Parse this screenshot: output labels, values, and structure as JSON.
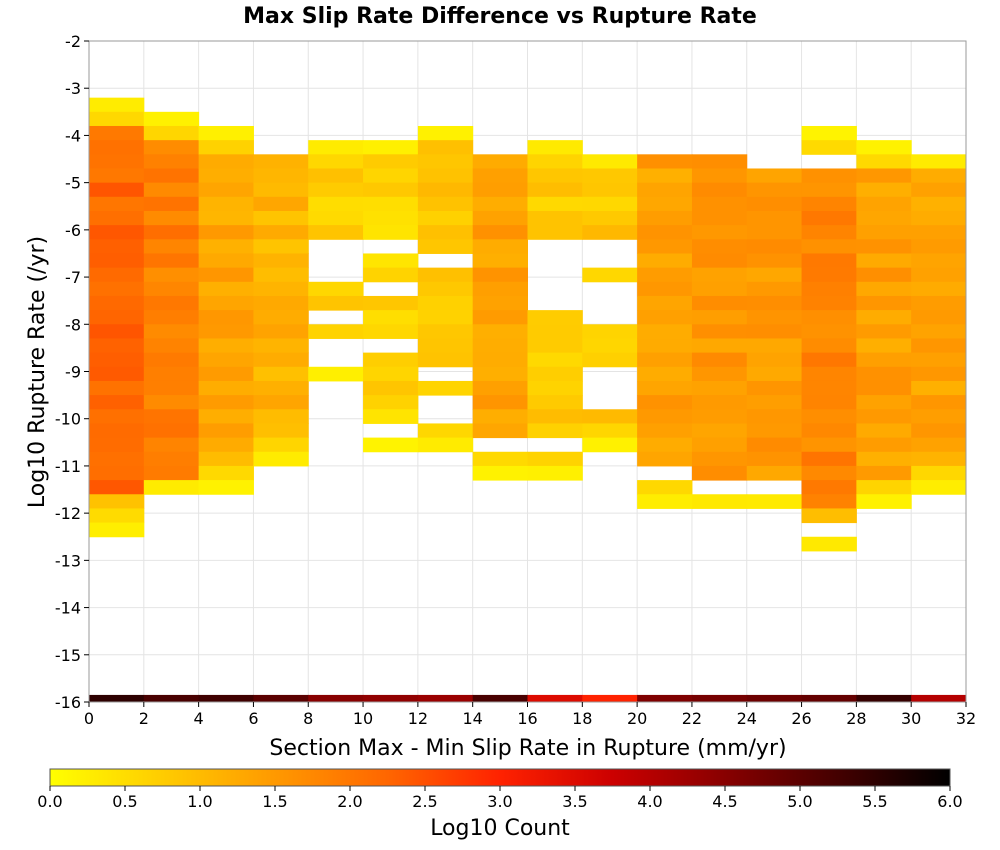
{
  "chart_data": {
    "type": "heatmap",
    "title": "Max Slip Rate Difference vs Rupture Rate",
    "xlabel": "Section Max - Min Slip Rate in Rupture (mm/yr)",
    "ylabel": "Log10 Rupture Rate (/yr)",
    "xlim": [
      0,
      32
    ],
    "ylim": [
      -16,
      -2
    ],
    "x_ticks": [
      "0",
      "2",
      "4",
      "6",
      "8",
      "10",
      "12",
      "14",
      "16",
      "18",
      "20",
      "22",
      "24",
      "26",
      "28",
      "30",
      "32"
    ],
    "y_ticks": [
      "-2",
      "-3",
      "-4",
      "-5",
      "-6",
      "-7",
      "-8",
      "-9",
      "-10",
      "-11",
      "-12",
      "-13",
      "-14",
      "-15",
      "-16"
    ],
    "x_bin_width": 2,
    "y_bin_height": 0.3,
    "grid": true,
    "colorbar": {
      "label": "Log10 Count",
      "min": 0.0,
      "max": 6.0,
      "ticks": [
        "0.0",
        "0.5",
        "1.0",
        "1.5",
        "2.0",
        "2.5",
        "3.0",
        "3.5",
        "4.0",
        "4.5",
        "5.0",
        "5.5",
        "6.0"
      ],
      "colors": [
        "#ffff00",
        "#ffcc00",
        "#ff9900",
        "#ff6600",
        "#ff2200",
        "#cc0000",
        "#880000",
        "#440000",
        "#000000"
      ]
    },
    "bottom_row": {
      "y": -16,
      "values": [
        5.5,
        5.2,
        5.3,
        5.0,
        4.5,
        4.4,
        4.3,
        5.2,
        3.5,
        3.0,
        4.6,
        4.7,
        4.8,
        4.9,
        5.4,
        4.0
      ]
    },
    "columns": [
      {
        "x": 0,
        "y_top": -3.2,
        "y_bottom": -12.4,
        "gaps": [],
        "light_top": 2,
        "light_bottom": 3,
        "core": 2.2
      },
      {
        "x": 2,
        "y_top": -3.5,
        "y_bottom": -11.6,
        "gaps": [],
        "light_top": 2,
        "light_bottom": 1,
        "core": 1.9
      },
      {
        "x": 4,
        "y_top": -3.8,
        "y_bottom": -11.6,
        "gaps": [],
        "light_top": 2,
        "light_bottom": 3,
        "core": 1.3
      },
      {
        "x": 6,
        "y_top": -4.4,
        "y_bottom": -11.0,
        "gaps": [],
        "light_top": 0,
        "light_bottom": 3,
        "core": 1.1
      },
      {
        "x": 8,
        "y_top": -4.1,
        "y_bottom": -9.2,
        "gaps": [
          [
            -6.2,
            -7.2
          ],
          [
            -7.8,
            -8.0
          ],
          [
            -8.4,
            -8.8
          ]
        ],
        "light_top": 1,
        "light_bottom": 2,
        "core": 0.7
      },
      {
        "x": 10,
        "y_top": -4.1,
        "y_bottom": -10.7,
        "gaps": [
          [
            -6.2,
            -6.6
          ],
          [
            -7.1,
            -7.5
          ],
          [
            -8.4,
            -8.6
          ],
          [
            -10.1,
            -10.4
          ]
        ],
        "light_top": 1,
        "light_bottom": 2,
        "core": 0.6
      },
      {
        "x": 12,
        "y_top": -3.8,
        "y_bottom": -10.7,
        "gaps": [
          [
            -6.5,
            -6.9
          ],
          [
            -9.0,
            -9.2
          ],
          [
            -9.6,
            -10.1
          ]
        ],
        "light_top": 1,
        "light_bottom": 2,
        "core": 0.8
      },
      {
        "x": 14,
        "y_top": -4.4,
        "y_bottom": -11.3,
        "gaps": [
          [
            -10.4,
            -10.6
          ]
        ],
        "light_top": 0,
        "light_bottom": 2,
        "core": 1.4
      },
      {
        "x": 16,
        "y_top": -4.1,
        "y_bottom": -11.3,
        "gaps": [
          [
            -6.2,
            -7.8
          ],
          [
            -10.4,
            -10.6
          ]
        ],
        "light_top": 2,
        "light_bottom": 2,
        "core": 0.8
      },
      {
        "x": 18,
        "y_top": -4.4,
        "y_bottom": -10.7,
        "gaps": [
          [
            -6.2,
            -6.9
          ],
          [
            -7.2,
            -8.1
          ],
          [
            -8.8,
            -9.8
          ]
        ],
        "light_top": 1,
        "light_bottom": 2,
        "core": 0.8
      },
      {
        "x": 20,
        "y_top": -4.4,
        "y_bottom": -11.9,
        "gaps": [
          [
            -11.0,
            -11.3
          ]
        ],
        "light_top": 0,
        "light_bottom": 2,
        "core": 1.4
      },
      {
        "x": 22,
        "y_top": -4.4,
        "y_bottom": -11.9,
        "gaps": [
          [
            -11.3,
            -11.6
          ]
        ],
        "light_top": 0,
        "light_bottom": 2,
        "core": 1.5
      },
      {
        "x": 24,
        "y_top": -4.7,
        "y_bottom": -11.9,
        "gaps": [
          [
            -11.3,
            -11.6
          ]
        ],
        "light_top": 0,
        "light_bottom": 2,
        "core": 1.5
      },
      {
        "x": 26,
        "y_top": -3.8,
        "y_bottom": -12.7,
        "gaps": [
          [
            -4.4,
            -4.7
          ],
          [
            -12.1,
            -12.4
          ]
        ],
        "light_top": 2,
        "light_bottom": 3,
        "core": 1.8
      },
      {
        "x": 28,
        "y_top": -4.1,
        "y_bottom": -11.9,
        "gaps": [],
        "light_top": 2,
        "light_bottom": 2,
        "core": 1.4
      },
      {
        "x": 30,
        "y_top": -4.4,
        "y_bottom": -11.6,
        "gaps": [],
        "light_top": 1,
        "light_bottom": 2,
        "core": 1.3
      }
    ]
  }
}
